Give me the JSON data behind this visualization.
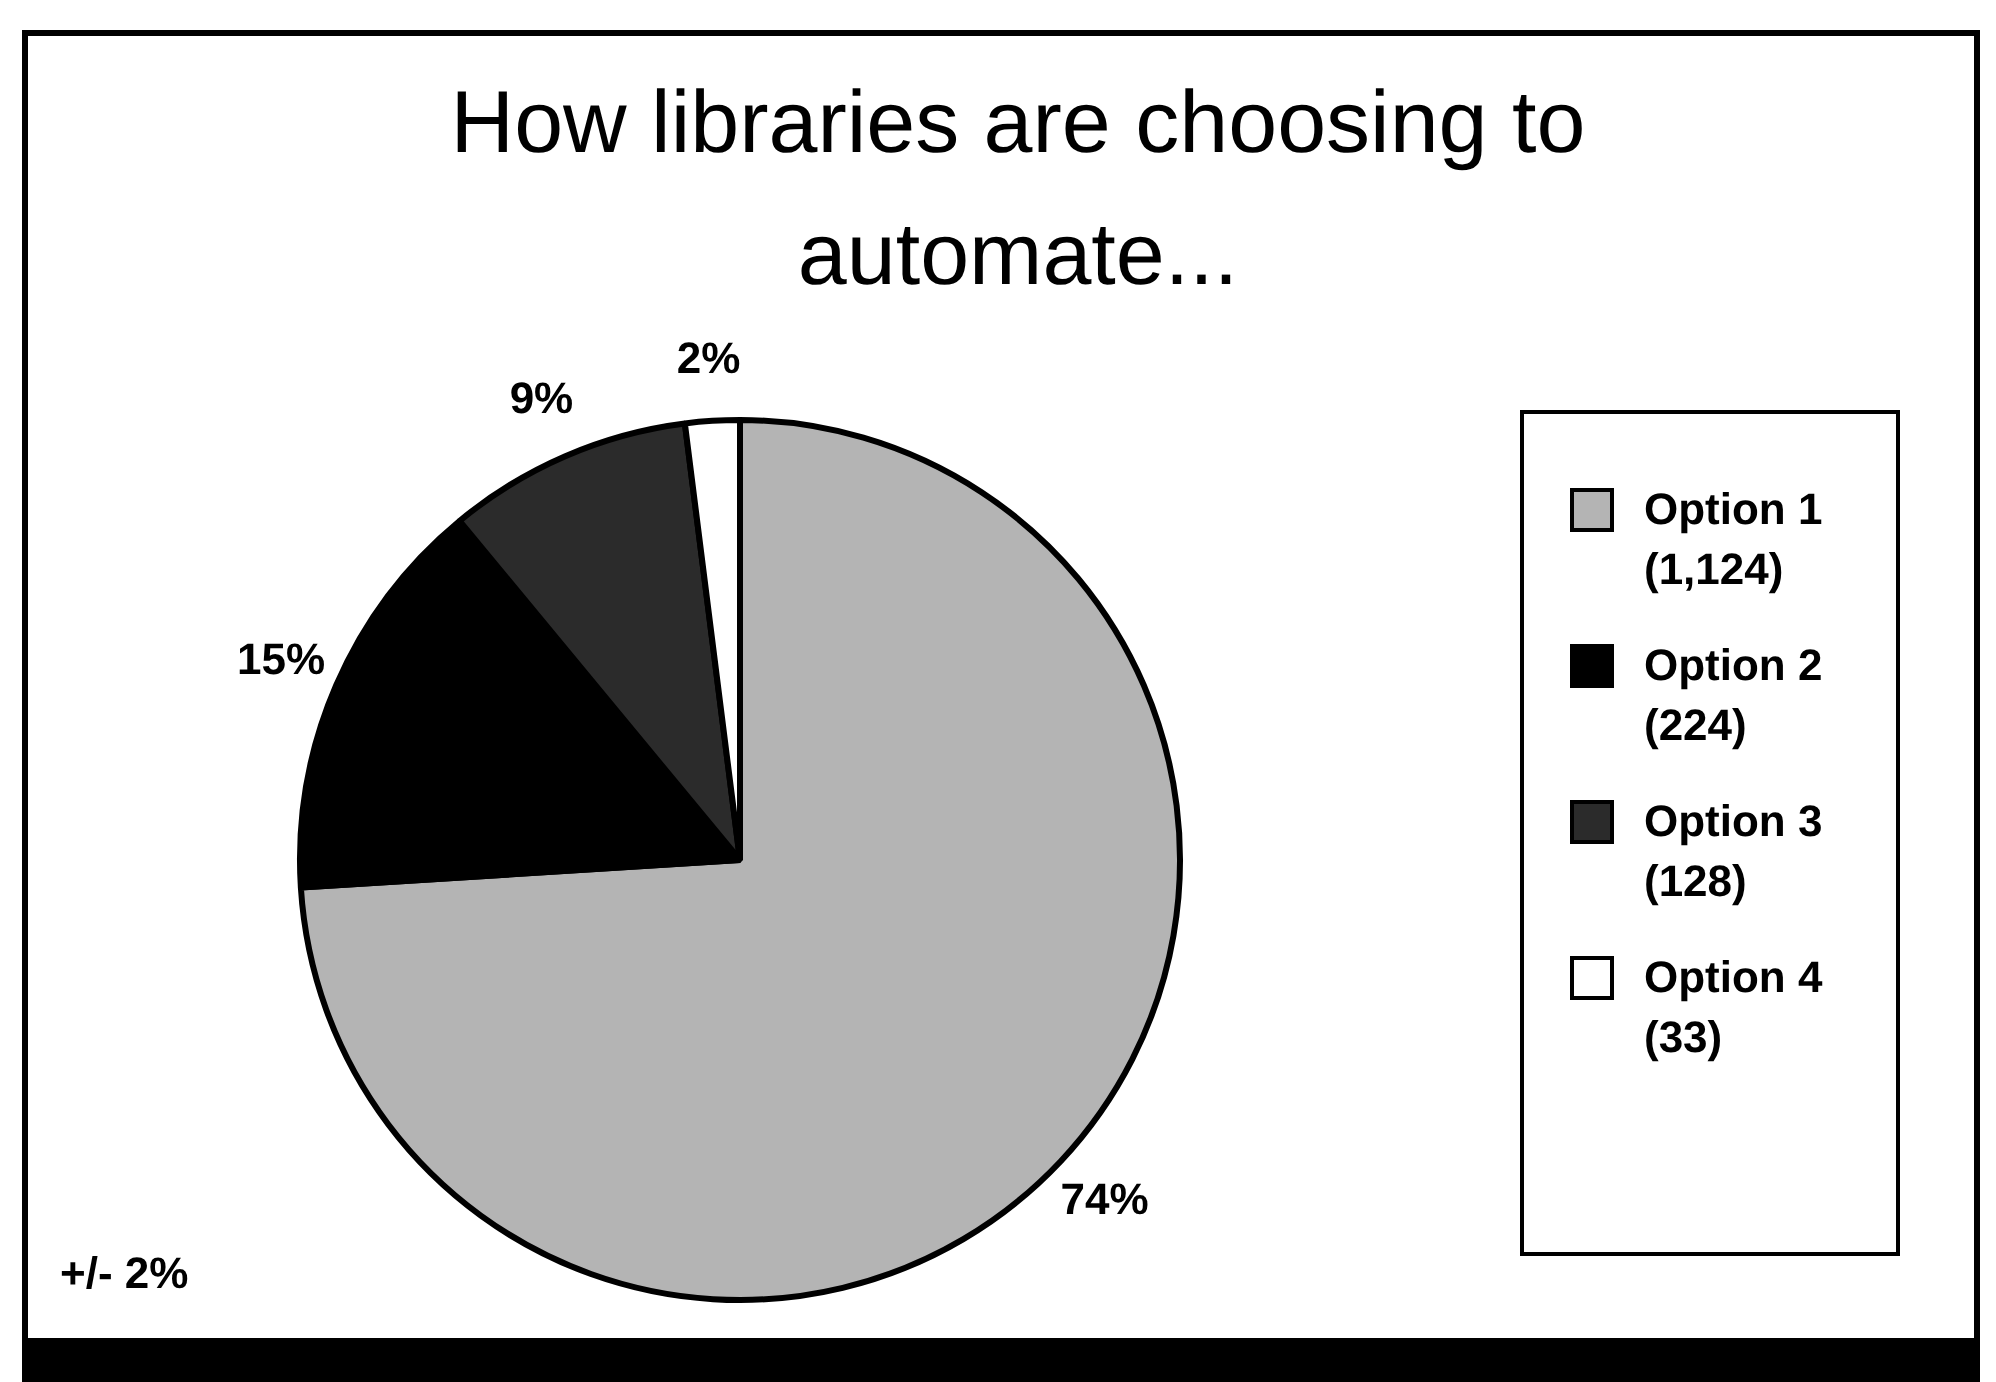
{
  "chart_data": {
    "type": "pie",
    "title": "How libraries are choosing to automate...",
    "categories": [
      "Option 1 (1,124)",
      "Option 2 (224)",
      "Option 3 (128)",
      "Option 4 (33)"
    ],
    "values": [
      74,
      15,
      9,
      2
    ],
    "colors": [
      "#b4b4b4",
      "#000000",
      "#2b2b2b",
      "#ffffff"
    ],
    "value_labels": [
      "74%",
      "15%",
      "9%",
      "2%"
    ],
    "legend": "right",
    "annotations": [
      "+/- 2%"
    ]
  }
}
